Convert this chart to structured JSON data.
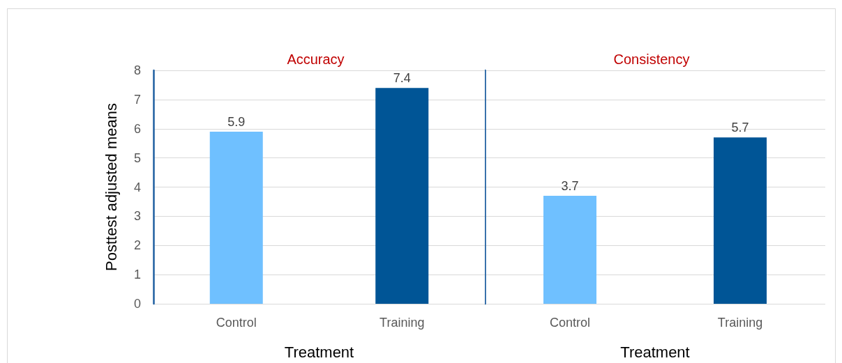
{
  "chart_data": [
    {
      "type": "bar",
      "title": "Accuracy",
      "ylabel": "Posttest adjusted means",
      "xlabel": "Treatment",
      "categories": [
        "Control",
        "Training"
      ],
      "values": [
        5.9,
        7.4
      ],
      "colors": [
        "#6fc0ff",
        "#005596"
      ],
      "data_labels": true,
      "ylim": [
        0,
        8
      ],
      "yticks": [
        0,
        1,
        2,
        3,
        4,
        5,
        6,
        7,
        8
      ],
      "grid": "y"
    },
    {
      "type": "bar",
      "title": "Consistency",
      "xlabel": "Treatment",
      "categories": [
        "Control",
        "Training"
      ],
      "values": [
        3.7,
        5.7
      ],
      "colors": [
        "#6fc0ff",
        "#005596"
      ],
      "data_labels": true,
      "ylim": [
        0,
        8
      ],
      "yticks": [
        0,
        1,
        2,
        3,
        4,
        5,
        6,
        7,
        8
      ],
      "grid": "y",
      "tick_labels": "x"
    }
  ]
}
